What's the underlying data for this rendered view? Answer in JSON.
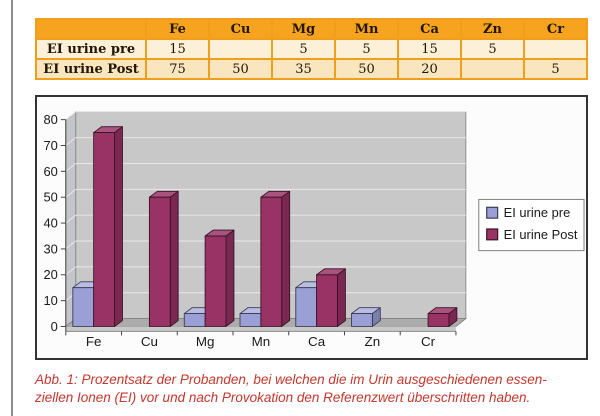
{
  "page": {
    "background": "#ffffff",
    "rule_color": "#8f8f8f"
  },
  "table": {
    "columns": [
      "",
      "Fe",
      "Cu",
      "Mg",
      "Mn",
      "Ca",
      "Zn",
      "Cr"
    ],
    "rows": [
      {
        "label": "EI urine pre",
        "values": [
          "15",
          "",
          "5",
          "5",
          "15",
          "5",
          ""
        ]
      },
      {
        "label": "EI urine Post",
        "values": [
          "75",
          "50",
          "35",
          "50",
          "20",
          "",
          "5"
        ]
      }
    ],
    "colors": {
      "header_bg": "#F6A41F",
      "border": "#EF9F1C",
      "row_bgs": [
        "#FCF1D8",
        "#F9E5BE"
      ],
      "text": "#221605"
    }
  },
  "chart_data": {
    "type": "bar",
    "style": "3d-clustered",
    "title": "",
    "xlabel": "",
    "ylabel": "",
    "categories": [
      "Fe",
      "Cu",
      "Mg",
      "Mn",
      "Ca",
      "Zn",
      "Cr"
    ],
    "series": [
      {
        "name": "EI urine pre",
        "color": "#9A9FD6",
        "values": [
          15,
          0,
          5,
          5,
          15,
          5,
          0
        ]
      },
      {
        "name": "EI urine Post",
        "color": "#993366",
        "values": [
          75,
          50,
          35,
          50,
          20,
          0,
          5
        ]
      }
    ],
    "ylim": [
      0,
      80
    ],
    "ytick_step": 10,
    "grid": true,
    "legend_position": "right",
    "plot_bg": "#C8C8C8",
    "side_wall_color": "#C4C5C9",
    "floor_color": "#ACACAC",
    "floor_edge_color": "#C9C9C9",
    "gridline_color": "#E9E9E9",
    "axis_color": "#444444",
    "label_color": "#1a1a1a",
    "legend_bg": "#FFFFFF",
    "legend_border": "#7F7F7F"
  },
  "caption": {
    "line1": "Abb. 1: Prozentsatz der Probanden, bei welchen die im Urin ausgeschiedenen essen-",
    "line2": "ziellen Ionen (EI) vor und nach Provokation den Referenzwert überschritten haben.",
    "color": "#C4372C"
  }
}
